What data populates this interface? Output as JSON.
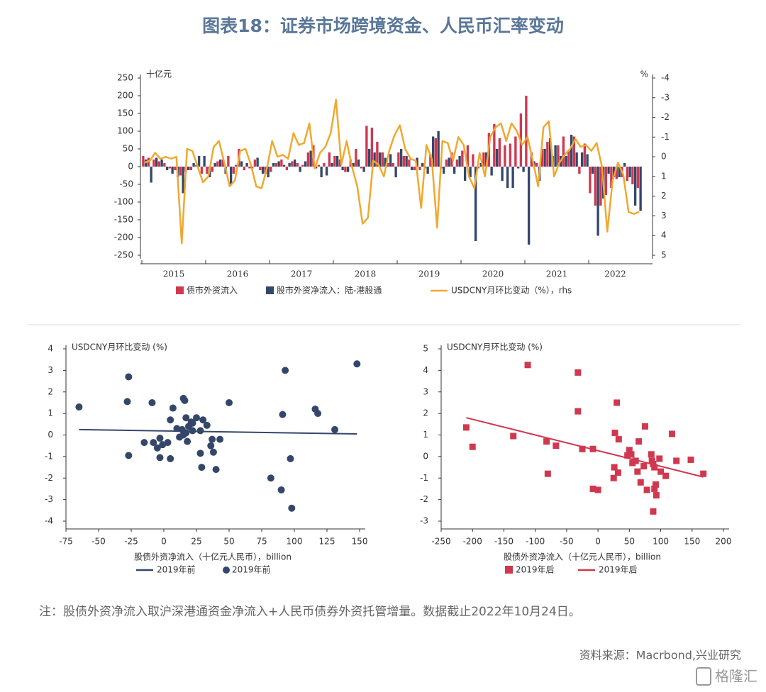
{
  "title": "图表18：证券市场跨境资金、人民币汇率变动",
  "note": "注：股债外资净流入取沪深港通资金净流入+人民币债券外资托管增量。数据截止2022年10月24日。",
  "source": "资料来源：Macrbond,兴业研究",
  "watermark": "格隆汇",
  "chart_data": [
    {
      "type": "bar",
      "ylabel": "十亿元",
      "y2label": "%",
      "xlabels": [
        "2015",
        "2016",
        "2017",
        "2018",
        "2019",
        "2020",
        "2021",
        "2022"
      ],
      "ylim": [
        -250,
        250
      ],
      "yticks": [
        -250,
        -200,
        -150,
        -100,
        -50,
        0,
        50,
        100,
        150,
        200,
        250
      ],
      "y2lim": [
        -4,
        5
      ],
      "y2ticks": [
        -4,
        -3,
        -2,
        -1,
        0,
        1,
        2,
        3,
        4,
        5
      ],
      "y2_inverted": true,
      "series": [
        {
          "name": "债市外资流入",
          "type": "bar",
          "color": "#d0384f",
          "values": [
            30,
            25,
            20,
            15,
            10,
            -5,
            -10,
            -25,
            -15,
            -10,
            5,
            -20,
            -20,
            -15,
            15,
            20,
            30,
            -20,
            50,
            -10,
            -5,
            20,
            -10,
            -20,
            -15,
            10,
            20,
            -10,
            15,
            10,
            5,
            40,
            60,
            5,
            10,
            40,
            30,
            20,
            -15,
            20,
            50,
            -5,
            115,
            110,
            70,
            40,
            10,
            10,
            40,
            30,
            20,
            -10,
            -10,
            -5,
            35,
            80,
            -5,
            20,
            40,
            20,
            45,
            60,
            35,
            -5,
            40,
            95,
            120,
            80,
            60,
            65,
            85,
            150,
            200,
            40,
            10,
            50,
            70,
            30,
            60,
            85,
            45,
            85,
            -20,
            65,
            -75,
            -110,
            -110,
            -80,
            -60,
            -35,
            -30,
            -40,
            -50,
            -60
          ]
        },
        {
          "name": "股市外资净流入：陆-港股通",
          "type": "bar",
          "color": "#34476b",
          "values": [
            20,
            -45,
            25,
            20,
            -10,
            -20,
            -30,
            -75,
            -10,
            10,
            30,
            30,
            -30,
            10,
            20,
            -20,
            -50,
            5,
            15,
            10,
            -5,
            25,
            -20,
            -30,
            10,
            15,
            5,
            10,
            20,
            -15,
            15,
            45,
            -5,
            -30,
            -25,
            10,
            30,
            -10,
            -15,
            10,
            20,
            -15,
            50,
            40,
            40,
            25,
            35,
            -30,
            50,
            30,
            -10,
            25,
            10,
            -20,
            85,
            100,
            -20,
            25,
            -20,
            30,
            -40,
            -30,
            -210,
            10,
            40,
            -25,
            50,
            -40,
            -60,
            -60,
            -5,
            -15,
            -220,
            15,
            -40,
            50,
            80,
            60,
            30,
            30,
            90,
            40,
            40,
            35,
            -20,
            -195,
            -90,
            -20,
            -30,
            -30,
            10,
            -30,
            -110,
            -125
          ]
        },
        {
          "name": "USDCNY月环比变动（%），rhs",
          "type": "line",
          "axis": "y2",
          "color": "#f0a830",
          "values": [
            0.3,
            0.2,
            -0.2,
            0.1,
            0,
            0.1,
            0,
            4.4,
            -0.4,
            -0.3,
            0.5,
            1.3,
            1.0,
            -0.5,
            -0.8,
            0.3,
            1.5,
            1.2,
            -0.3,
            -0.4,
            0.4,
            1.5,
            1.6,
            0.6,
            -0.8,
            0,
            -0.1,
            0.1,
            -1.2,
            -0.6,
            -0.7,
            -1.7,
            0.6,
            -0.2,
            -0.5,
            -1.2,
            -2.9,
            0.4,
            -0.8,
            0.5,
            1.5,
            3.4,
            3.1,
            0.2,
            0.4,
            1.0,
            -0.3,
            -1.1,
            -1.6,
            -0.4,
            0.1,
            0.2,
            2.6,
            -0.6,
            0.1,
            3.6,
            -0.8,
            -0.7,
            0.2,
            -1.0,
            -0.6,
            1.0,
            1.6,
            -0.2,
            1.0,
            -1.0,
            -1.5,
            -1.7,
            -0.8,
            -1.7,
            -1.3,
            -0.6,
            -1.0,
            0.2,
            1.5,
            -1.5,
            -1.8,
            1.0,
            0.3,
            -0.1,
            -0.4,
            -0.9,
            -0.5,
            -0.6,
            -0.3,
            -0.7,
            0.5,
            3.8,
            1.2,
            0.3,
            0.9,
            2.8,
            2.9,
            2.8
          ]
        }
      ]
    },
    {
      "type": "scatter",
      "ylabel": "USDCNY月环比变动 (%)",
      "xlabel": "股债外资净流入（十亿元人民币），billion",
      "xlim": [
        -75,
        150
      ],
      "xticks": [
        -75,
        -50,
        -25,
        0,
        25,
        50,
        75,
        100,
        125,
        150
      ],
      "ylim": [
        -4,
        4
      ],
      "yticks": [
        -4,
        -3,
        -2,
        -1,
        0,
        1,
        2,
        3,
        4
      ],
      "series": [
        {
          "name": "2019年前",
          "type": "line",
          "color": "#34476b",
          "x": [
            -65,
            148
          ],
          "values": [
            0.25,
            0.05
          ]
        },
        {
          "name": "2019年前",
          "type": "scatter",
          "marker": "circle",
          "color": "#34476b",
          "x": [
            -65,
            -28,
            -27,
            -27,
            -15,
            -9,
            -8,
            -5,
            -3,
            -3,
            -1,
            3,
            5,
            5,
            7,
            10,
            12,
            14,
            15,
            15,
            16,
            17,
            17,
            18,
            19,
            21,
            22,
            22,
            25,
            28,
            28,
            29,
            30,
            33,
            36,
            37,
            38,
            40,
            43,
            50,
            82,
            90,
            91,
            93,
            97,
            98,
            116,
            118,
            131,
            148
          ],
          "values": [
            1.3,
            1.55,
            2.7,
            -0.95,
            -0.35,
            1.5,
            -0.35,
            -0.6,
            -0.15,
            -1.05,
            -0.45,
            -0.35,
            0.7,
            -1.1,
            1.25,
            0.3,
            -0.1,
            0.25,
            1.7,
            0.0,
            1.6,
            0.8,
            0.1,
            -0.3,
            0.4,
            0.6,
            0.55,
            0.2,
            0.8,
            0.2,
            -0.85,
            -1.5,
            0.7,
            0.45,
            -0.5,
            -0.2,
            -0.8,
            -1.6,
            -0.2,
            1.5,
            -2.0,
            -2.55,
            0.95,
            3.0,
            -1.1,
            -3.4,
            1.2,
            1.0,
            0.25,
            3.3
          ]
        }
      ]
    },
    {
      "type": "scatter",
      "ylabel": "USDCNY月环比变动 (%)",
      "xlabel": "股债外资净流入（十亿元人民币），billion",
      "xlim": [
        -250,
        200
      ],
      "xticks": [
        -250,
        -200,
        -150,
        -100,
        -50,
        0,
        50,
        100,
        150,
        200
      ],
      "ylim": [
        -3,
        5
      ],
      "yticks": [
        -3,
        -2,
        -1,
        0,
        1,
        2,
        3,
        4,
        5
      ],
      "series": [
        {
          "name": "2019年后",
          "type": "scatter",
          "marker": "square",
          "color": "#d0384f",
          "x": [
            -210,
            -200,
            -135,
            -112,
            -82,
            -80,
            -67,
            -32,
            -32,
            -25,
            -8,
            -8,
            0,
            27,
            25,
            26,
            30,
            32,
            33,
            47,
            50,
            53,
            55,
            60,
            63,
            65,
            68,
            73,
            75,
            78,
            85,
            86,
            88,
            88,
            90,
            90,
            92,
            93,
            98,
            100,
            108,
            118,
            125,
            148,
            168
          ],
          "values": [
            1.35,
            0.45,
            0.95,
            4.25,
            0.7,
            -0.8,
            0.5,
            3.9,
            2.1,
            0.35,
            0.35,
            -1.5,
            -1.55,
            1.1,
            -1.0,
            -0.5,
            2.5,
            -0.75,
            0.8,
            0.05,
            0.3,
            0.1,
            -0.3,
            -0.2,
            -0.7,
            0.7,
            -1.2,
            -0.45,
            1.4,
            -1.55,
            0.1,
            -0.2,
            -0.35,
            -2.55,
            -1.5,
            -0.5,
            -1.3,
            -1.8,
            -0.1,
            -0.7,
            -0.9,
            1.05,
            -0.2,
            -0.15,
            -0.8
          ]
        },
        {
          "name": "2019年后",
          "type": "line",
          "color": "#d0384f",
          "x": [
            -210,
            168
          ],
          "values": [
            1.8,
            -0.95
          ]
        }
      ]
    }
  ]
}
